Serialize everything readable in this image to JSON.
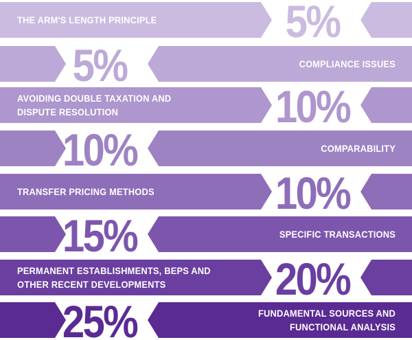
{
  "chart_data": {
    "type": "bar",
    "categories": [
      "THE ARM'S LENGTH PRINCIPLE",
      "COMPLIANCE ISSUES",
      "AVOIDING DOUBLE TAXATION AND\nDISPUTE RESOLUTION",
      "COMPARABILITY",
      "TRANSFER PRICING METHODS",
      "SPECIFIC TRANSACTIONS",
      "PERMANENT ESTABLISHMENTS, BEPS AND\nOTHER RECENT DEVELOPMENTS",
      "FUNDAMENTAL SOURCES AND\nFUNCTIONAL ANALYSIS"
    ],
    "values": [
      5,
      5,
      10,
      10,
      10,
      15,
      20,
      25
    ],
    "value_labels": [
      "5%",
      "5%",
      "10%",
      "10%",
      "10%",
      "15%",
      "20%",
      "25%"
    ],
    "unit": "%",
    "colors": [
      "#cbbbe0",
      "#bda9d7",
      "#ae96ce",
      "#9e83c3",
      "#8e6db9",
      "#7c56ad",
      "#6a3fa0",
      "#5a2b93"
    ],
    "title": "",
    "xlabel": "",
    "ylabel": ""
  }
}
